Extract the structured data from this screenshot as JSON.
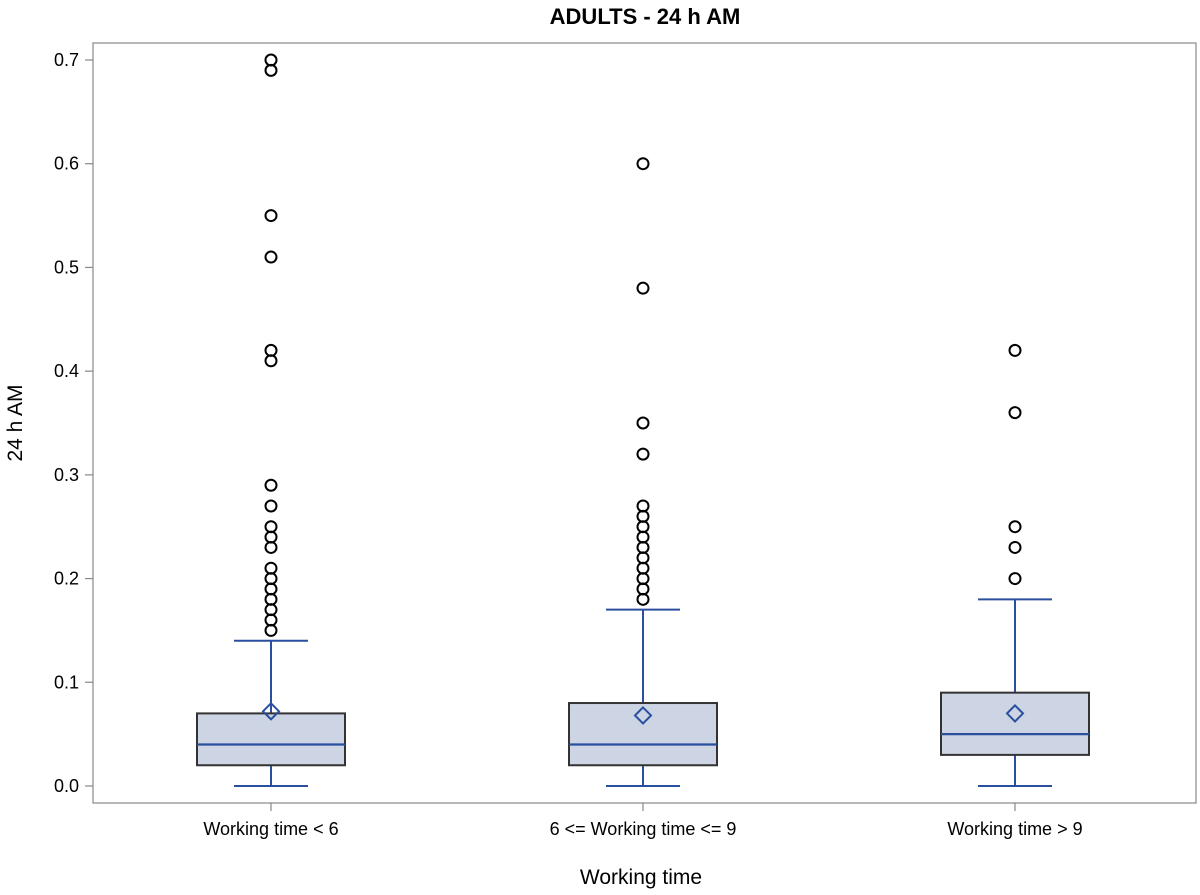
{
  "chart_data": {
    "type": "box",
    "title": "ADULTS - 24 h AM",
    "xlabel": "Working time",
    "ylabel": "24 h AM",
    "ylim": [
      0.0,
      0.7
    ],
    "yticks": [
      "0.0",
      "0.1",
      "0.2",
      "0.3",
      "0.4",
      "0.5",
      "0.6",
      "0.7"
    ],
    "categories": [
      "Working time < 6",
      "6 <= Working time <= 9",
      "Working time > 9"
    ],
    "boxes": [
      {
        "category": "Working time < 6",
        "whisker_low": 0.0,
        "q1": 0.02,
        "median": 0.04,
        "q3": 0.07,
        "whisker_high": 0.14,
        "mean": 0.072,
        "outliers": [
          0.15,
          0.16,
          0.17,
          0.18,
          0.19,
          0.2,
          0.21,
          0.23,
          0.24,
          0.25,
          0.27,
          0.29,
          0.41,
          0.42,
          0.51,
          0.55,
          0.69,
          0.7
        ]
      },
      {
        "category": "6 <= Working time <= 9",
        "whisker_low": 0.0,
        "q1": 0.02,
        "median": 0.04,
        "q3": 0.08,
        "whisker_high": 0.17,
        "mean": 0.068,
        "outliers": [
          0.18,
          0.19,
          0.2,
          0.21,
          0.22,
          0.23,
          0.24,
          0.25,
          0.26,
          0.27,
          0.32,
          0.35,
          0.48,
          0.6
        ]
      },
      {
        "category": "Working time > 9",
        "whisker_low": 0.0,
        "q1": 0.03,
        "median": 0.05,
        "q3": 0.09,
        "whisker_high": 0.18,
        "mean": 0.07,
        "outliers": [
          0.2,
          0.23,
          0.25,
          0.36,
          0.42
        ]
      }
    ],
    "grid": false,
    "colors": {
      "box_fill": "#cdd5e4",
      "box_stroke": "#333333",
      "whisker": "#2a4f9e",
      "median": "#2a4f9e",
      "mean_marker": "#2a4f9e",
      "outlier": "#000000"
    }
  }
}
